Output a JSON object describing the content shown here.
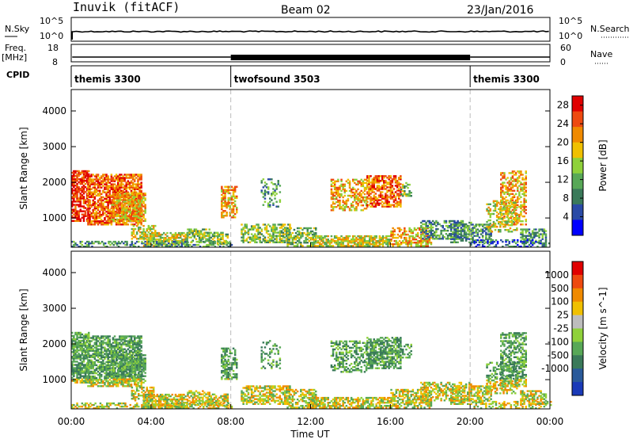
{
  "header": {
    "station": "Inuvik (fitACF)",
    "beam": "Beam 02",
    "date": "23/Jan/2016"
  },
  "top_panels": {
    "nsky_label": "N.Sky",
    "nsky_ticks": [
      "10^5",
      "10^0"
    ],
    "nsearch_label": "N.Search",
    "nsearch_ticks": [
      "10^5",
      "10^0"
    ],
    "freq_label": "Freq.",
    "freq_unit": "[MHz]",
    "freq_ticks": [
      "18",
      "8"
    ],
    "nave_label": "Nave",
    "nave_ticks": [
      "60",
      "0"
    ],
    "cpid_label": "CPID"
  },
  "cpid_segments": [
    {
      "label": "themis 3300",
      "start": 0,
      "end": 8
    },
    {
      "label": "twofsound 3503",
      "start": 8,
      "end": 20
    },
    {
      "label": "themis 3300",
      "start": 20,
      "end": 24
    }
  ],
  "chart_data": [
    {
      "type": "heatmap",
      "xlabel": "Time UT",
      "ylabel": "Slant Range [km]",
      "xlim": [
        0,
        24
      ],
      "ylim": [
        180,
        4600
      ],
      "y_ticks": [
        1000,
        2000,
        3000,
        4000
      ],
      "colorbar_label": "Power [dB]",
      "colorbar_ticks": [
        4,
        8,
        12,
        16,
        20,
        24,
        28
      ],
      "colorbar_range": [
        0,
        30
      ],
      "colors": [
        "#0000ff",
        "#2a4aa6",
        "#3a7a5a",
        "#58a857",
        "#8fd13a",
        "#f0c000",
        "#f08a00",
        "#ee4a10",
        "#e00000"
      ]
    },
    {
      "type": "heatmap",
      "xlabel": "Time UT",
      "ylabel": "Slant Range [km]",
      "xlim": [
        0,
        24
      ],
      "ylim": [
        180,
        4600
      ],
      "y_ticks": [
        1000,
        2000,
        3000,
        4000
      ],
      "colorbar_label": "Velocity [m s^-1]",
      "colorbar_ticks": [
        "1000",
        "500",
        "100",
        "25",
        "-25",
        "-100",
        "-500",
        "-1000"
      ],
      "colors": [
        "#1a3ab8",
        "#2a5a9a",
        "#3a7a5a",
        "#58a857",
        "#8fd13a",
        "#bdbdbd",
        "#f0c000",
        "#f08a00",
        "#ee4a10",
        "#e00000"
      ]
    }
  ],
  "x_ticks": [
    "00:00",
    "04:00",
    "08:00",
    "12:00",
    "16:00",
    "20:00",
    "00:00"
  ],
  "x_label": "Time UT"
}
